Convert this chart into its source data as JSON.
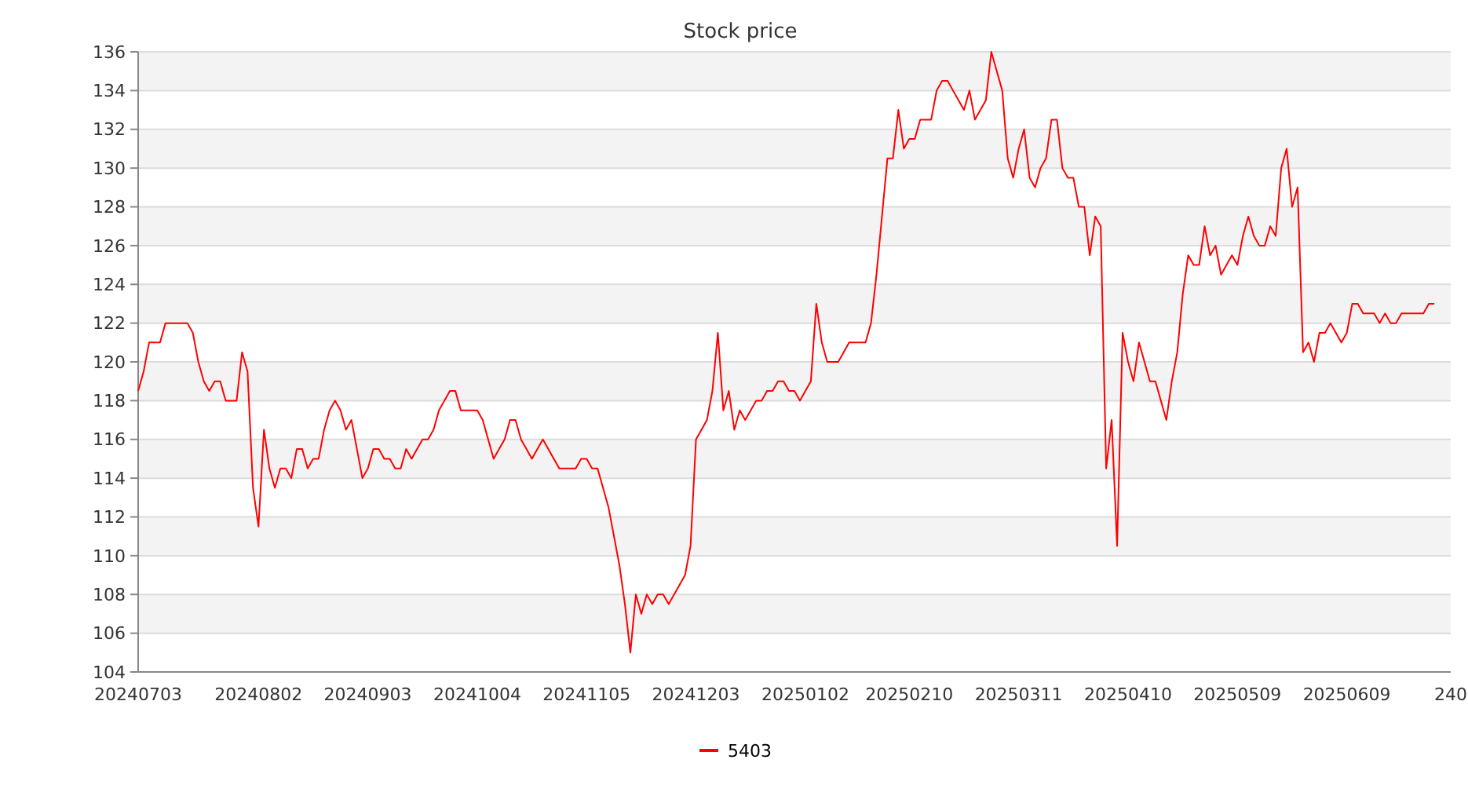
{
  "chart_data": {
    "type": "line",
    "title": "Stock price",
    "categories": [
      "20240703",
      null,
      null,
      null,
      null,
      null,
      null,
      null,
      null,
      null,
      null,
      null,
      null,
      null,
      null,
      null,
      null,
      null,
      null,
      null,
      null,
      null,
      "20240802",
      null,
      null,
      null,
      null,
      null,
      null,
      null,
      null,
      null,
      null,
      null,
      null,
      null,
      null,
      null,
      null,
      null,
      null,
      null,
      "20240903",
      null,
      null,
      null,
      null,
      null,
      null,
      null,
      null,
      null,
      null,
      null,
      null,
      null,
      null,
      null,
      null,
      null,
      null,
      null,
      "20241004",
      null,
      null,
      null,
      null,
      null,
      null,
      null,
      null,
      null,
      null,
      null,
      null,
      null,
      null,
      null,
      null,
      null,
      null,
      null,
      "20241105",
      null,
      null,
      null,
      null,
      null,
      null,
      null,
      null,
      null,
      null,
      null,
      null,
      null,
      null,
      null,
      null,
      null,
      null,
      null,
      "20241203",
      null,
      null,
      null,
      null,
      null,
      null,
      null,
      null,
      null,
      null,
      null,
      null,
      null,
      null,
      null,
      null,
      null,
      null,
      null,
      "20250102",
      null,
      null,
      null,
      null,
      null,
      null,
      null,
      null,
      null,
      null,
      null,
      null,
      null,
      null,
      null,
      null,
      null,
      null,
      "20250210",
      null,
      null,
      null,
      null,
      null,
      null,
      null,
      null,
      null,
      null,
      null,
      null,
      null,
      null,
      null,
      null,
      null,
      null,
      null,
      "20250311",
      null,
      null,
      null,
      null,
      null,
      null,
      null,
      null,
      null,
      null,
      null,
      null,
      null,
      null,
      null,
      null,
      null,
      null,
      null,
      "20250410",
      null,
      null,
      null,
      null,
      null,
      null,
      null,
      null,
      null,
      null,
      null,
      null,
      null,
      null,
      null,
      null,
      null,
      null,
      null,
      "20250509",
      null,
      null,
      null,
      null,
      null,
      null,
      null,
      null,
      null,
      null,
      null,
      null,
      null,
      null,
      null,
      null,
      null,
      null,
      null,
      "20250609",
      null,
      null,
      null,
      null,
      null,
      null,
      null,
      null,
      null,
      null,
      null,
      null,
      null,
      null,
      null,
      null,
      null,
      null,
      "240"
    ],
    "series": [
      {
        "name": "5403",
        "color": "#ff0000",
        "values": [
          118.5,
          119.5,
          121,
          121,
          121,
          122,
          122,
          122,
          122,
          122,
          121.5,
          120,
          119,
          118.5,
          119,
          119,
          118,
          118,
          118,
          120.5,
          119.5,
          113.5,
          111.5,
          116.5,
          114.5,
          113.5,
          114.5,
          114.5,
          114,
          115.5,
          115.5,
          114.5,
          115,
          115,
          116.5,
          117.5,
          118,
          117.5,
          116.5,
          117,
          115.5,
          114,
          114.5,
          115.5,
          115.5,
          115,
          115,
          114.5,
          114.5,
          115.5,
          115,
          115.5,
          116,
          116,
          116.5,
          117.5,
          118,
          118.5,
          118.5,
          117.5,
          117.5,
          117.5,
          117.5,
          117,
          116,
          115,
          115.5,
          116,
          117,
          117,
          116,
          115.5,
          115,
          115.5,
          116,
          115.5,
          115,
          114.5,
          114.5,
          114.5,
          114.5,
          115,
          115,
          114.5,
          114.5,
          113.5,
          112.5,
          111,
          109.5,
          107.5,
          105,
          108,
          107,
          108,
          107.5,
          108,
          108,
          107.5,
          108,
          108.5,
          109,
          110.5,
          116,
          116.5,
          117,
          118.5,
          121.5,
          117.5,
          118.5,
          116.5,
          117.5,
          117,
          117.5,
          118,
          118,
          118.5,
          118.5,
          119,
          119,
          118.5,
          118.5,
          118,
          118.5,
          119,
          123,
          121,
          120,
          120,
          120,
          120.5,
          121,
          121,
          121,
          121,
          122,
          124.5,
          127.5,
          130.5,
          130.5,
          133,
          131,
          131.5,
          131.5,
          132.5,
          132.5,
          132.5,
          134,
          134.5,
          134.5,
          134,
          133.5,
          133,
          134,
          132.5,
          133,
          133.5,
          136,
          135,
          134,
          130.5,
          129.5,
          131,
          132,
          129.5,
          129,
          130,
          130.5,
          132.5,
          132.5,
          130,
          129.5,
          129.5,
          128,
          128,
          125.5,
          127.5,
          127,
          114.5,
          117,
          110.5,
          121.5,
          120,
          119,
          121,
          120,
          119,
          119,
          118,
          117,
          119,
          120.5,
          123.5,
          125.5,
          125,
          125,
          127,
          125.5,
          126,
          124.5,
          125,
          125.5,
          125,
          126.5,
          127.5,
          126.5,
          126,
          126,
          127,
          126.5,
          130,
          131,
          128,
          129,
          120.5,
          121,
          120,
          121.5,
          121.5,
          122,
          121.5,
          121,
          121.5,
          123,
          123,
          122.5,
          122.5,
          122.5,
          122,
          122.5,
          122,
          122,
          122.5,
          122.5,
          122.5,
          122.5,
          122.5,
          123,
          123,
          null,
          null,
          null
        ]
      }
    ],
    "ylim": [
      104,
      136
    ],
    "yticks": [
      104,
      106,
      108,
      110,
      112,
      114,
      116,
      118,
      120,
      122,
      124,
      126,
      128,
      130,
      132,
      134,
      136
    ],
    "grid": "y",
    "legend": "bottom"
  }
}
